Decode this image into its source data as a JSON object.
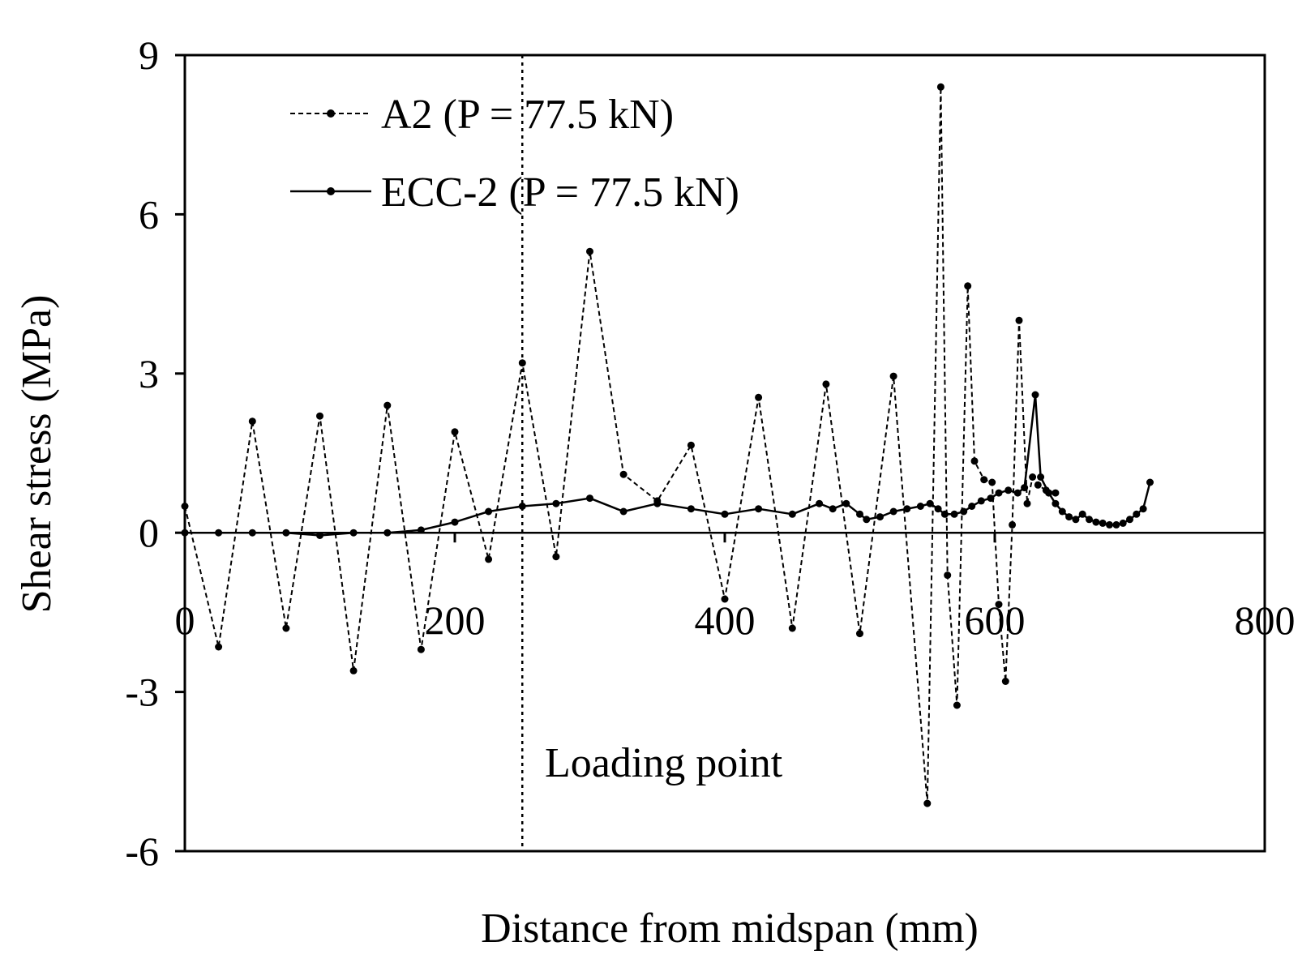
{
  "chart_data": {
    "type": "line",
    "title": "",
    "xlabel": "Distance from midspan (mm)",
    "ylabel": "Shear stress (MPa)",
    "xlim": [
      0,
      800
    ],
    "ylim": [
      -6,
      9
    ],
    "xticks": [
      0,
      200,
      400,
      600,
      800
    ],
    "yticks": [
      -6,
      -3,
      0,
      3,
      6,
      9
    ],
    "xtick_labels": [
      "0",
      "200",
      "400",
      "600",
      "800"
    ],
    "ytick_labels": [
      "-6",
      "-3",
      "0",
      "3",
      "6",
      "9"
    ],
    "grid": false,
    "legend_position": "top-left",
    "annotation": {
      "text": "Loading point",
      "x": 250
    },
    "series": [
      {
        "name": "A2 (P = 77.5 kN)",
        "style": "dashed",
        "marker": "dot",
        "color": "#000000",
        "points": [
          [
            0,
            0.5
          ],
          [
            25,
            -2.15
          ],
          [
            50,
            2.1
          ],
          [
            75,
            -1.8
          ],
          [
            100,
            2.2
          ],
          [
            125,
            -2.6
          ],
          [
            150,
            2.4
          ],
          [
            175,
            -2.2
          ],
          [
            200,
            1.9
          ],
          [
            225,
            -0.5
          ],
          [
            250,
            3.2
          ],
          [
            275,
            -0.45
          ],
          [
            300,
            5.3
          ],
          [
            325,
            1.1
          ],
          [
            350,
            0.6
          ],
          [
            375,
            1.65
          ],
          [
            400,
            -1.25
          ],
          [
            425,
            2.55
          ],
          [
            450,
            -1.8
          ],
          [
            475,
            2.8
          ],
          [
            500,
            -1.9
          ],
          [
            525,
            2.95
          ],
          [
            550,
            -5.1
          ],
          [
            560,
            8.4
          ],
          [
            565,
            -0.8
          ],
          [
            572,
            -3.25
          ],
          [
            580,
            4.65
          ],
          [
            585,
            1.35
          ],
          [
            592,
            1.0
          ],
          [
            598,
            0.95
          ],
          [
            603,
            -1.35
          ],
          [
            608,
            -2.8
          ],
          [
            613,
            0.15
          ],
          [
            618,
            4.0
          ],
          [
            624,
            0.55
          ],
          [
            628,
            1.05
          ],
          [
            632,
            0.9
          ],
          [
            638,
            0.8
          ],
          [
            645,
            0.75
          ]
        ]
      },
      {
        "name": "ECC-2 (P = 77.5 kN)",
        "style": "solid",
        "marker": "dot",
        "color": "#000000",
        "points": [
          [
            0,
            0.0
          ],
          [
            25,
            0.0
          ],
          [
            50,
            0.0
          ],
          [
            75,
            0.0
          ],
          [
            100,
            -0.05
          ],
          [
            125,
            0.0
          ],
          [
            150,
            0.0
          ],
          [
            175,
            0.05
          ],
          [
            200,
            0.2
          ],
          [
            225,
            0.4
          ],
          [
            250,
            0.5
          ],
          [
            275,
            0.55
          ],
          [
            300,
            0.65
          ],
          [
            325,
            0.4
          ],
          [
            350,
            0.55
          ],
          [
            375,
            0.45
          ],
          [
            400,
            0.35
          ],
          [
            425,
            0.45
          ],
          [
            450,
            0.35
          ],
          [
            470,
            0.55
          ],
          [
            480,
            0.45
          ],
          [
            490,
            0.55
          ],
          [
            500,
            0.35
          ],
          [
            505,
            0.25
          ],
          [
            515,
            0.3
          ],
          [
            525,
            0.4
          ],
          [
            535,
            0.45
          ],
          [
            545,
            0.5
          ],
          [
            552,
            0.55
          ],
          [
            558,
            0.45
          ],
          [
            563,
            0.35
          ],
          [
            570,
            0.35
          ],
          [
            577,
            0.4
          ],
          [
            583,
            0.5
          ],
          [
            590,
            0.6
          ],
          [
            597,
            0.65
          ],
          [
            603,
            0.75
          ],
          [
            610,
            0.8
          ],
          [
            617,
            0.75
          ],
          [
            622,
            0.85
          ],
          [
            630,
            2.6
          ],
          [
            634,
            1.05
          ],
          [
            640,
            0.75
          ],
          [
            645,
            0.55
          ],
          [
            650,
            0.4
          ],
          [
            655,
            0.3
          ],
          [
            660,
            0.25
          ],
          [
            665,
            0.35
          ],
          [
            670,
            0.25
          ],
          [
            675,
            0.2
          ],
          [
            680,
            0.18
          ],
          [
            685,
            0.15
          ],
          [
            690,
            0.15
          ],
          [
            695,
            0.18
          ],
          [
            700,
            0.25
          ],
          [
            705,
            0.35
          ],
          [
            710,
            0.45
          ],
          [
            715,
            0.95
          ]
        ]
      }
    ]
  }
}
